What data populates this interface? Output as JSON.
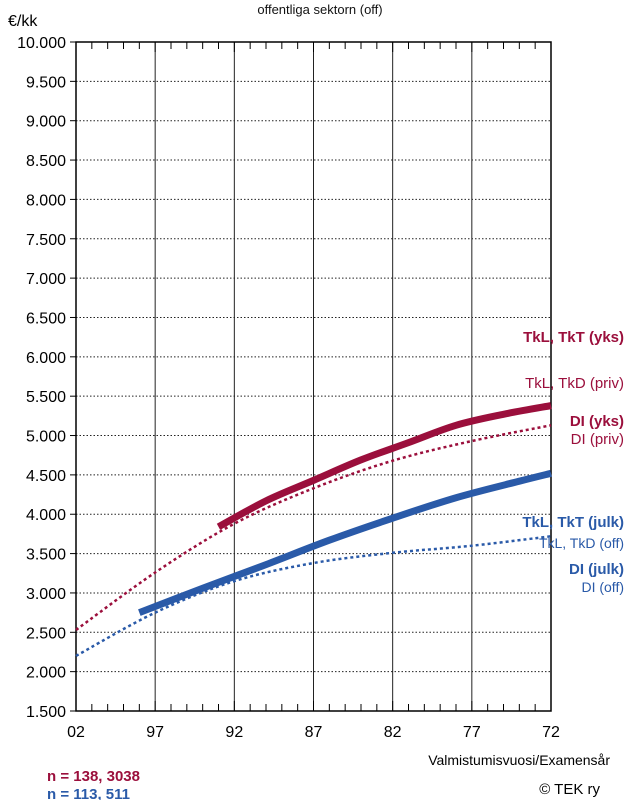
{
  "chart_data": {
    "type": "line",
    "header_text": "offentliga sektorn (off)",
    "ylabel": "€/kk",
    "xlabel": "Valmistumisvuosi/Examensår",
    "x_ticks": [
      "02",
      "97",
      "92",
      "87",
      "82",
      "77",
      "72"
    ],
    "x_tick_values": [
      2002,
      1997,
      1992,
      1987,
      1982,
      1977,
      1972
    ],
    "xlim": [
      2002,
      1972
    ],
    "y_ticks": [
      "1.500",
      "2.000",
      "2.500",
      "3.000",
      "3.500",
      "4.000",
      "4.500",
      "5.000",
      "5.500",
      "6.000",
      "6.500",
      "7.000",
      "7.500",
      "8.000",
      "8.500",
      "9.000",
      "9.500",
      "10.000"
    ],
    "ylim": [
      1500,
      10000
    ],
    "grid": true,
    "series": [
      {
        "style": "dotted",
        "color": "#9b0f3c",
        "x": [
          2002,
          1997,
          1992,
          1987,
          1982,
          1977,
          1972
        ],
        "values": [
          2530,
          3260,
          3880,
          4330,
          4680,
          4930,
          5130
        ]
      },
      {
        "style": "solid",
        "color": "#9b0f3c",
        "x": [
          1993,
          1990,
          1987,
          1984,
          1981,
          1978,
          1975,
          1972
        ],
        "values": [
          3840,
          4170,
          4430,
          4690,
          4910,
          5130,
          5270,
          5380
        ]
      },
      {
        "style": "dotted",
        "color": "#2a5aa8",
        "x": [
          2002,
          1997,
          1992,
          1987,
          1982,
          1977,
          1972
        ],
        "values": [
          2200,
          2750,
          3150,
          3380,
          3510,
          3600,
          3720
        ]
      },
      {
        "style": "solid",
        "color": "#2a5aa8",
        "x": [
          1998,
          1994,
          1990,
          1986,
          1982,
          1978,
          1974,
          1972
        ],
        "values": [
          2750,
          3060,
          3360,
          3670,
          3950,
          4210,
          4420,
          4520
        ]
      }
    ],
    "annotations": [
      {
        "text": "TkL, TkT (yks)",
        "color": "#9b0f3c",
        "bold": true
      },
      {
        "text": "TkL, TkD (priv)",
        "color": "#9b0f3c",
        "bold": false
      },
      {
        "text": "DI (yks)",
        "color": "#9b0f3c",
        "bold": true
      },
      {
        "text": "DI (priv)",
        "color": "#9b0f3c",
        "bold": false
      },
      {
        "text": "TkL, TkT (julk)",
        "color": "#2a5aa8",
        "bold": true
      },
      {
        "text": "TkL, TkD (off)",
        "color": "#2a5aa8",
        "bold": false
      },
      {
        "text": "DI (julk)",
        "color": "#2a5aa8",
        "bold": true
      },
      {
        "text": "DI (off)",
        "color": "#2a5aa8",
        "bold": false
      }
    ],
    "footnotes": [
      {
        "text": "n = 138, 3038",
        "color": "#9b0f3c"
      },
      {
        "text": "n = 113, 511",
        "color": "#2a5aa8"
      }
    ],
    "credit": "©  TEK ry"
  }
}
